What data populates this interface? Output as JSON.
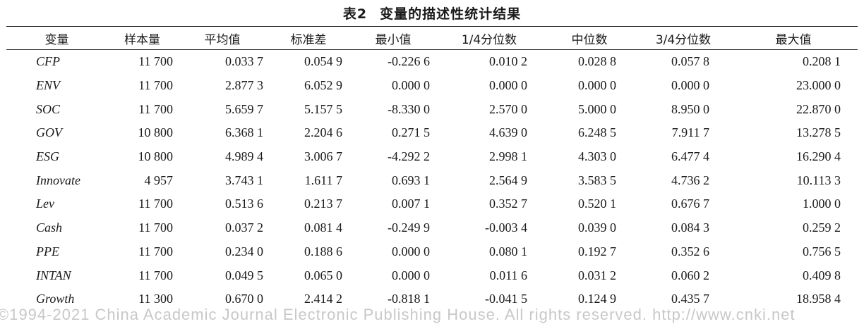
{
  "caption": {
    "number": "表2",
    "title": "变量的描述性统计结果"
  },
  "table": {
    "headers": [
      "变量",
      "样本量",
      "平均值",
      "标准差",
      "最小值",
      "1/4分位数",
      "中位数",
      "3/4分位数",
      "最大值"
    ],
    "rows": [
      [
        "CFP",
        "11 700",
        "0.033 7",
        "0.054 9",
        "-0.226 6",
        "0.010 2",
        "0.028 8",
        "0.057 8",
        "0.208 1"
      ],
      [
        "ENV",
        "11 700",
        "2.877 3",
        "6.052 9",
        "0.000 0",
        "0.000 0",
        "0.000 0",
        "0.000 0",
        "23.000 0"
      ],
      [
        "SOC",
        "11 700",
        "5.659 7",
        "5.157 5",
        "-8.330 0",
        "2.570 0",
        "5.000 0",
        "8.950 0",
        "22.870 0"
      ],
      [
        "GOV",
        "10 800",
        "6.368 1",
        "2.204 6",
        "0.271 5",
        "4.639 0",
        "6.248 5",
        "7.911 7",
        "13.278 5"
      ],
      [
        "ESG",
        "10 800",
        "4.989 4",
        "3.006 7",
        "-4.292 2",
        "2.998 1",
        "4.303 0",
        "6.477 4",
        "16.290 4"
      ],
      [
        "Innovate",
        "4 957",
        "3.743 1",
        "1.611 7",
        "0.693 1",
        "2.564 9",
        "3.583 5",
        "4.736 2",
        "10.113 3"
      ],
      [
        "Lev",
        "11 700",
        "0.513 6",
        "0.213 7",
        "0.007 1",
        "0.352 7",
        "0.520 1",
        "0.676 7",
        "1.000 0"
      ],
      [
        "Cash",
        "11 700",
        "0.037 2",
        "0.081 4",
        "-0.249 9",
        "-0.003 4",
        "0.039 0",
        "0.084 3",
        "0.259 2"
      ],
      [
        "PPE",
        "11 700",
        "0.234 0",
        "0.188 6",
        "0.000 0",
        "0.080 1",
        "0.192 7",
        "0.352 6",
        "0.756 5"
      ],
      [
        "INTAN",
        "11 700",
        "0.049 5",
        "0.065 0",
        "0.000 0",
        "0.011 6",
        "0.031 2",
        "0.060 2",
        "0.409 8"
      ],
      [
        "Growth",
        "11 300",
        "0.670 0",
        "2.414 2",
        "-0.818 1",
        "-0.041 5",
        "0.124 9",
        "0.435 7",
        "18.958 4"
      ]
    ]
  },
  "watermark": "©1994-2021 China Academic Journal Electronic Publishing House. All rights reserved.    http://www.cnki.net"
}
